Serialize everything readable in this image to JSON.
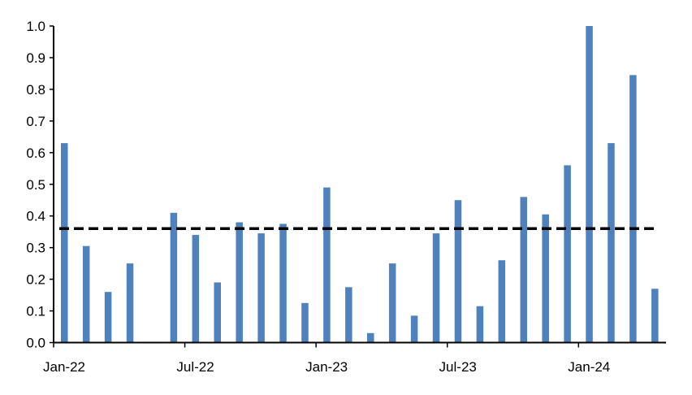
{
  "chart_data": {
    "type": "bar",
    "title": "",
    "xlabel": "",
    "ylabel": "",
    "ylim": [
      0,
      1.0
    ],
    "yticks": [
      "0.0",
      "0.1",
      "0.2",
      "0.3",
      "0.4",
      "0.5",
      "0.6",
      "0.7",
      "0.8",
      "0.9",
      "1.0"
    ],
    "xtick_labels": [
      {
        "label": "Jan-22",
        "month_index": 0
      },
      {
        "label": "Jul-22",
        "month_index": 6
      },
      {
        "label": "Jan-23",
        "month_index": 12
      },
      {
        "label": "Jul-23",
        "month_index": 18
      },
      {
        "label": "Jan-24",
        "month_index": 24
      }
    ],
    "categories": [
      "Jan-22",
      "Feb-22",
      "Mar-22",
      "Apr-22",
      "May-22",
      "Jun-22",
      "Jul-22",
      "Aug-22",
      "Sep-22",
      "Oct-22",
      "Nov-22",
      "Dec-22",
      "Jan-23",
      "Feb-23",
      "Mar-23",
      "Apr-23",
      "May-23",
      "Jun-23",
      "Jul-23",
      "Aug-23",
      "Sep-23",
      "Oct-23",
      "Nov-23",
      "Dec-23",
      "Jan-24",
      "Feb-24",
      "Mar-24",
      "Apr-24"
    ],
    "values": [
      0.63,
      0.305,
      0.16,
      0.25,
      null,
      0.41,
      0.34,
      0.19,
      0.38,
      0.345,
      0.375,
      0.125,
      0.49,
      0.175,
      0.03,
      0.25,
      0.085,
      0.345,
      0.45,
      0.115,
      0.26,
      0.46,
      0.405,
      0.56,
      1.0,
      0.63,
      0.845,
      0.17
    ],
    "reference_line": {
      "value": 0.36,
      "style": "dashed",
      "color": "#000000"
    },
    "bar_color": "#4F81BD",
    "grid": false,
    "legend": "none"
  }
}
